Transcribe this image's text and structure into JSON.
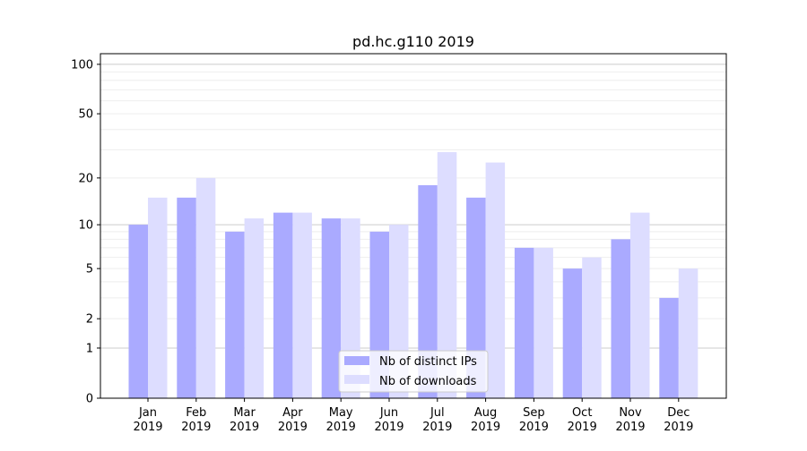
{
  "chart_data": {
    "type": "bar",
    "title": "pd.hc.g110 2019",
    "xlabel": "",
    "ylabel": "",
    "yscale": "log10(v+1)",
    "ylim": [
      0,
      116
    ],
    "yticks": [
      0,
      1,
      2,
      5,
      10,
      20,
      50,
      100
    ],
    "categories": [
      "Jan\n2019",
      "Feb\n2019",
      "Mar\n2019",
      "Apr\n2019",
      "May\n2019",
      "Jun\n2019",
      "Jul\n2019",
      "Aug\n2019",
      "Sep\n2019",
      "Oct\n2019",
      "Nov\n2019",
      "Dec\n2019"
    ],
    "series": [
      {
        "name": "Nb of distinct IPs",
        "color": "#aaaaff",
        "values": [
          10,
          15,
          9,
          12,
          11,
          9,
          18,
          15,
          7,
          5,
          8,
          3
        ]
      },
      {
        "name": "Nb of downloads",
        "color": "#ddddff",
        "values": [
          15,
          20,
          11,
          12,
          11,
          10,
          29,
          25,
          7,
          6,
          12,
          5
        ]
      }
    ],
    "grid": true,
    "legend": "bottom-center"
  }
}
